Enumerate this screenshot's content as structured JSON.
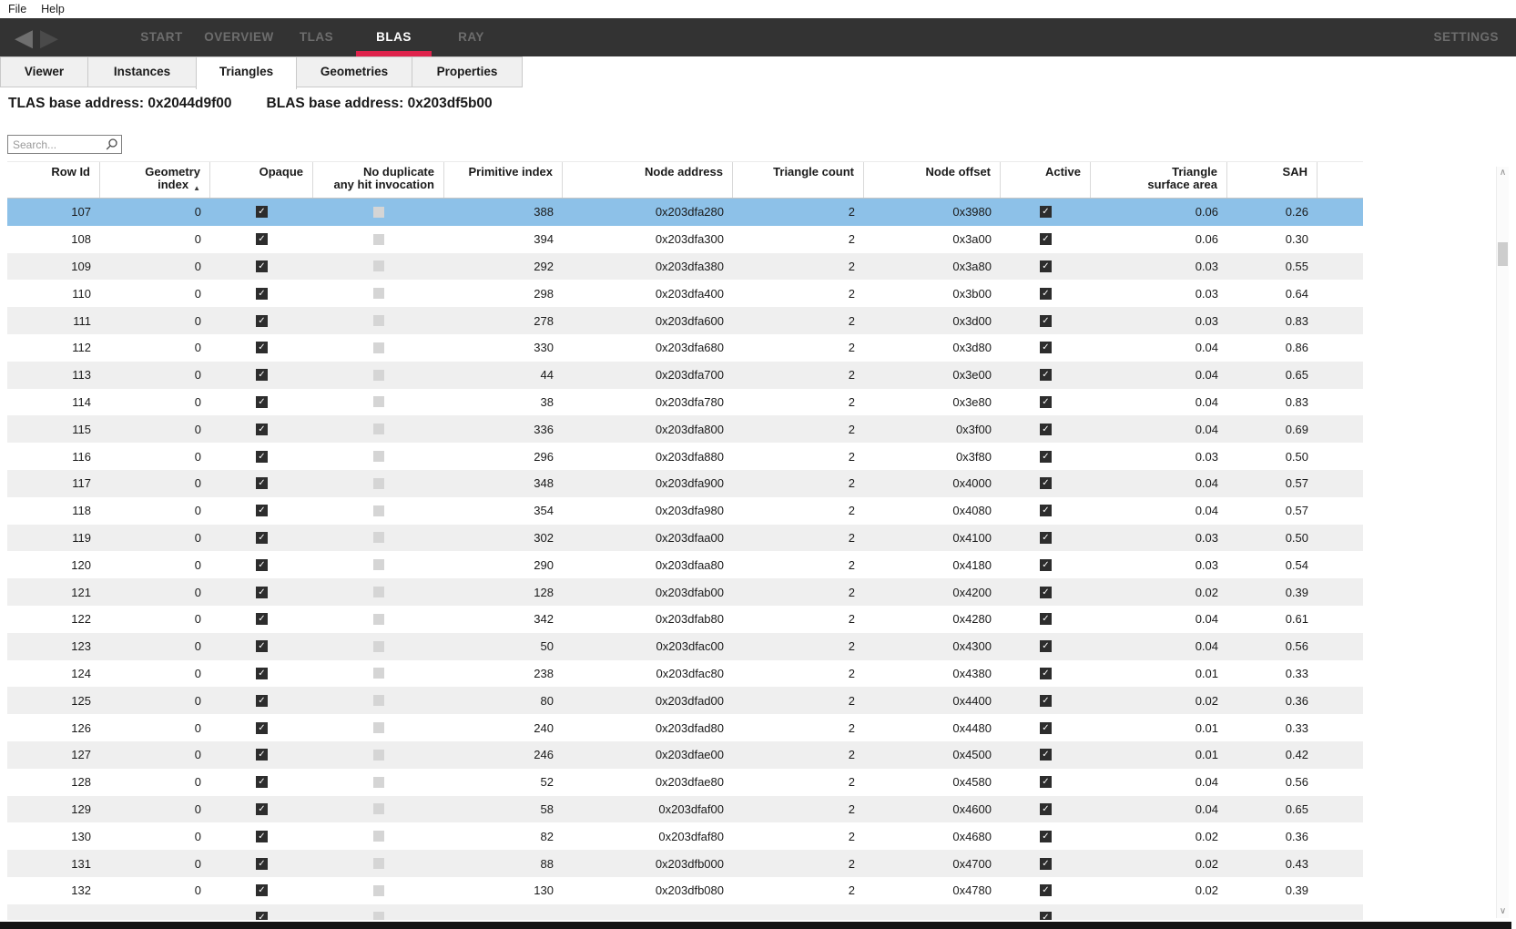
{
  "menubar": {
    "items": [
      {
        "label": "File"
      },
      {
        "label": "Help"
      }
    ]
  },
  "navbar": {
    "back_icon": "◀",
    "forward_icon": "▶",
    "tabs": [
      {
        "label": "START",
        "active": false
      },
      {
        "label": "OVERVIEW",
        "active": false
      },
      {
        "label": "TLAS",
        "active": false
      },
      {
        "label": "BLAS",
        "active": true
      },
      {
        "label": "RAY",
        "active": false
      }
    ],
    "settings_label": "SETTINGS",
    "colors": {
      "background": "#333333",
      "inactive_text": "#6d6d6d",
      "active_text": "#ffffff",
      "accent_red": "#df234c"
    }
  },
  "subtabs": {
    "items": [
      {
        "label": "Viewer",
        "active": false
      },
      {
        "label": "Instances",
        "active": false
      },
      {
        "label": "Triangles",
        "active": true
      },
      {
        "label": "Geometries",
        "active": false
      },
      {
        "label": "Properties",
        "active": false
      }
    ]
  },
  "addresses": {
    "tlas_text": "TLAS base address: 0x2044d9f00",
    "blas_text": "BLAS base address: 0x203df5b00"
  },
  "search": {
    "placeholder": "Search..."
  },
  "table": {
    "columns": [
      {
        "label": "Row Id"
      },
      {
        "label": "Geometry index",
        "sort": "ascending",
        "sort_icon": "▲"
      },
      {
        "label": "Opaque"
      },
      {
        "label": "No duplicate\nany hit invocation"
      },
      {
        "label": "Primitive index"
      },
      {
        "label": "Node address"
      },
      {
        "label": "Triangle count"
      },
      {
        "label": "Node offset"
      },
      {
        "label": "Active"
      },
      {
        "label": "Triangle\nsurface area"
      },
      {
        "label": "SAH"
      }
    ],
    "check_icon": "✓",
    "selected_row_color": "#8dc1e8",
    "alt_row_color": "#efefef",
    "rows": [
      {
        "row_id": "107",
        "geometry_index": "0",
        "opaque": true,
        "no_duplicate": false,
        "primitive_index": "388",
        "node_address": "0x203dfa280",
        "triangle_count": "2",
        "node_offset": "0x3980",
        "active": true,
        "surface_area": "0.06",
        "sah": "0.26",
        "selected": true
      },
      {
        "row_id": "108",
        "geometry_index": "0",
        "opaque": true,
        "no_duplicate": false,
        "primitive_index": "394",
        "node_address": "0x203dfa300",
        "triangle_count": "2",
        "node_offset": "0x3a00",
        "active": true,
        "surface_area": "0.06",
        "sah": "0.30",
        "selected": false
      },
      {
        "row_id": "109",
        "geometry_index": "0",
        "opaque": true,
        "no_duplicate": false,
        "primitive_index": "292",
        "node_address": "0x203dfa380",
        "triangle_count": "2",
        "node_offset": "0x3a80",
        "active": true,
        "surface_area": "0.03",
        "sah": "0.55",
        "selected": false
      },
      {
        "row_id": "110",
        "geometry_index": "0",
        "opaque": true,
        "no_duplicate": false,
        "primitive_index": "298",
        "node_address": "0x203dfa400",
        "triangle_count": "2",
        "node_offset": "0x3b00",
        "active": true,
        "surface_area": "0.03",
        "sah": "0.64",
        "selected": false
      },
      {
        "row_id": "111",
        "geometry_index": "0",
        "opaque": true,
        "no_duplicate": false,
        "primitive_index": "278",
        "node_address": "0x203dfa600",
        "triangle_count": "2",
        "node_offset": "0x3d00",
        "active": true,
        "surface_area": "0.03",
        "sah": "0.83",
        "selected": false
      },
      {
        "row_id": "112",
        "geometry_index": "0",
        "opaque": true,
        "no_duplicate": false,
        "primitive_index": "330",
        "node_address": "0x203dfa680",
        "triangle_count": "2",
        "node_offset": "0x3d80",
        "active": true,
        "surface_area": "0.04",
        "sah": "0.86",
        "selected": false
      },
      {
        "row_id": "113",
        "geometry_index": "0",
        "opaque": true,
        "no_duplicate": false,
        "primitive_index": "44",
        "node_address": "0x203dfa700",
        "triangle_count": "2",
        "node_offset": "0x3e00",
        "active": true,
        "surface_area": "0.04",
        "sah": "0.65",
        "selected": false
      },
      {
        "row_id": "114",
        "geometry_index": "0",
        "opaque": true,
        "no_duplicate": false,
        "primitive_index": "38",
        "node_address": "0x203dfa780",
        "triangle_count": "2",
        "node_offset": "0x3e80",
        "active": true,
        "surface_area": "0.04",
        "sah": "0.83",
        "selected": false
      },
      {
        "row_id": "115",
        "geometry_index": "0",
        "opaque": true,
        "no_duplicate": false,
        "primitive_index": "336",
        "node_address": "0x203dfa800",
        "triangle_count": "2",
        "node_offset": "0x3f00",
        "active": true,
        "surface_area": "0.04",
        "sah": "0.69",
        "selected": false
      },
      {
        "row_id": "116",
        "geometry_index": "0",
        "opaque": true,
        "no_duplicate": false,
        "primitive_index": "296",
        "node_address": "0x203dfa880",
        "triangle_count": "2",
        "node_offset": "0x3f80",
        "active": true,
        "surface_area": "0.03",
        "sah": "0.50",
        "selected": false
      },
      {
        "row_id": "117",
        "geometry_index": "0",
        "opaque": true,
        "no_duplicate": false,
        "primitive_index": "348",
        "node_address": "0x203dfa900",
        "triangle_count": "2",
        "node_offset": "0x4000",
        "active": true,
        "surface_area": "0.04",
        "sah": "0.57",
        "selected": false
      },
      {
        "row_id": "118",
        "geometry_index": "0",
        "opaque": true,
        "no_duplicate": false,
        "primitive_index": "354",
        "node_address": "0x203dfa980",
        "triangle_count": "2",
        "node_offset": "0x4080",
        "active": true,
        "surface_area": "0.04",
        "sah": "0.57",
        "selected": false
      },
      {
        "row_id": "119",
        "geometry_index": "0",
        "opaque": true,
        "no_duplicate": false,
        "primitive_index": "302",
        "node_address": "0x203dfaa00",
        "triangle_count": "2",
        "node_offset": "0x4100",
        "active": true,
        "surface_area": "0.03",
        "sah": "0.50",
        "selected": false
      },
      {
        "row_id": "120",
        "geometry_index": "0",
        "opaque": true,
        "no_duplicate": false,
        "primitive_index": "290",
        "node_address": "0x203dfaa80",
        "triangle_count": "2",
        "node_offset": "0x4180",
        "active": true,
        "surface_area": "0.03",
        "sah": "0.54",
        "selected": false
      },
      {
        "row_id": "121",
        "geometry_index": "0",
        "opaque": true,
        "no_duplicate": false,
        "primitive_index": "128",
        "node_address": "0x203dfab00",
        "triangle_count": "2",
        "node_offset": "0x4200",
        "active": true,
        "surface_area": "0.02",
        "sah": "0.39",
        "selected": false
      },
      {
        "row_id": "122",
        "geometry_index": "0",
        "opaque": true,
        "no_duplicate": false,
        "primitive_index": "342",
        "node_address": "0x203dfab80",
        "triangle_count": "2",
        "node_offset": "0x4280",
        "active": true,
        "surface_area": "0.04",
        "sah": "0.61",
        "selected": false
      },
      {
        "row_id": "123",
        "geometry_index": "0",
        "opaque": true,
        "no_duplicate": false,
        "primitive_index": "50",
        "node_address": "0x203dfac00",
        "triangle_count": "2",
        "node_offset": "0x4300",
        "active": true,
        "surface_area": "0.04",
        "sah": "0.56",
        "selected": false
      },
      {
        "row_id": "124",
        "geometry_index": "0",
        "opaque": true,
        "no_duplicate": false,
        "primitive_index": "238",
        "node_address": "0x203dfac80",
        "triangle_count": "2",
        "node_offset": "0x4380",
        "active": true,
        "surface_area": "0.01",
        "sah": "0.33",
        "selected": false
      },
      {
        "row_id": "125",
        "geometry_index": "0",
        "opaque": true,
        "no_duplicate": false,
        "primitive_index": "80",
        "node_address": "0x203dfad00",
        "triangle_count": "2",
        "node_offset": "0x4400",
        "active": true,
        "surface_area": "0.02",
        "sah": "0.36",
        "selected": false
      },
      {
        "row_id": "126",
        "geometry_index": "0",
        "opaque": true,
        "no_duplicate": false,
        "primitive_index": "240",
        "node_address": "0x203dfad80",
        "triangle_count": "2",
        "node_offset": "0x4480",
        "active": true,
        "surface_area": "0.01",
        "sah": "0.33",
        "selected": false
      },
      {
        "row_id": "127",
        "geometry_index": "0",
        "opaque": true,
        "no_duplicate": false,
        "primitive_index": "246",
        "node_address": "0x203dfae00",
        "triangle_count": "2",
        "node_offset": "0x4500",
        "active": true,
        "surface_area": "0.01",
        "sah": "0.42",
        "selected": false
      },
      {
        "row_id": "128",
        "geometry_index": "0",
        "opaque": true,
        "no_duplicate": false,
        "primitive_index": "52",
        "node_address": "0x203dfae80",
        "triangle_count": "2",
        "node_offset": "0x4580",
        "active": true,
        "surface_area": "0.04",
        "sah": "0.56",
        "selected": false
      },
      {
        "row_id": "129",
        "geometry_index": "0",
        "opaque": true,
        "no_duplicate": false,
        "primitive_index": "58",
        "node_address": "0x203dfaf00",
        "triangle_count": "2",
        "node_offset": "0x4600",
        "active": true,
        "surface_area": "0.04",
        "sah": "0.65",
        "selected": false
      },
      {
        "row_id": "130",
        "geometry_index": "0",
        "opaque": true,
        "no_duplicate": false,
        "primitive_index": "82",
        "node_address": "0x203dfaf80",
        "triangle_count": "2",
        "node_offset": "0x4680",
        "active": true,
        "surface_area": "0.02",
        "sah": "0.36",
        "selected": false
      },
      {
        "row_id": "131",
        "geometry_index": "0",
        "opaque": true,
        "no_duplicate": false,
        "primitive_index": "88",
        "node_address": "0x203dfb000",
        "triangle_count": "2",
        "node_offset": "0x4700",
        "active": true,
        "surface_area": "0.02",
        "sah": "0.43",
        "selected": false
      },
      {
        "row_id": "132",
        "geometry_index": "0",
        "opaque": true,
        "no_duplicate": false,
        "primitive_index": "130",
        "node_address": "0x203dfb080",
        "triangle_count": "2",
        "node_offset": "0x4780",
        "active": true,
        "surface_area": "0.02",
        "sah": "0.39",
        "selected": false
      }
    ],
    "partial_row": {
      "opaque": true,
      "no_duplicate": false,
      "active": true
    }
  },
  "scrollbar": {
    "up_icon": "∧",
    "down_icon": "∨"
  }
}
